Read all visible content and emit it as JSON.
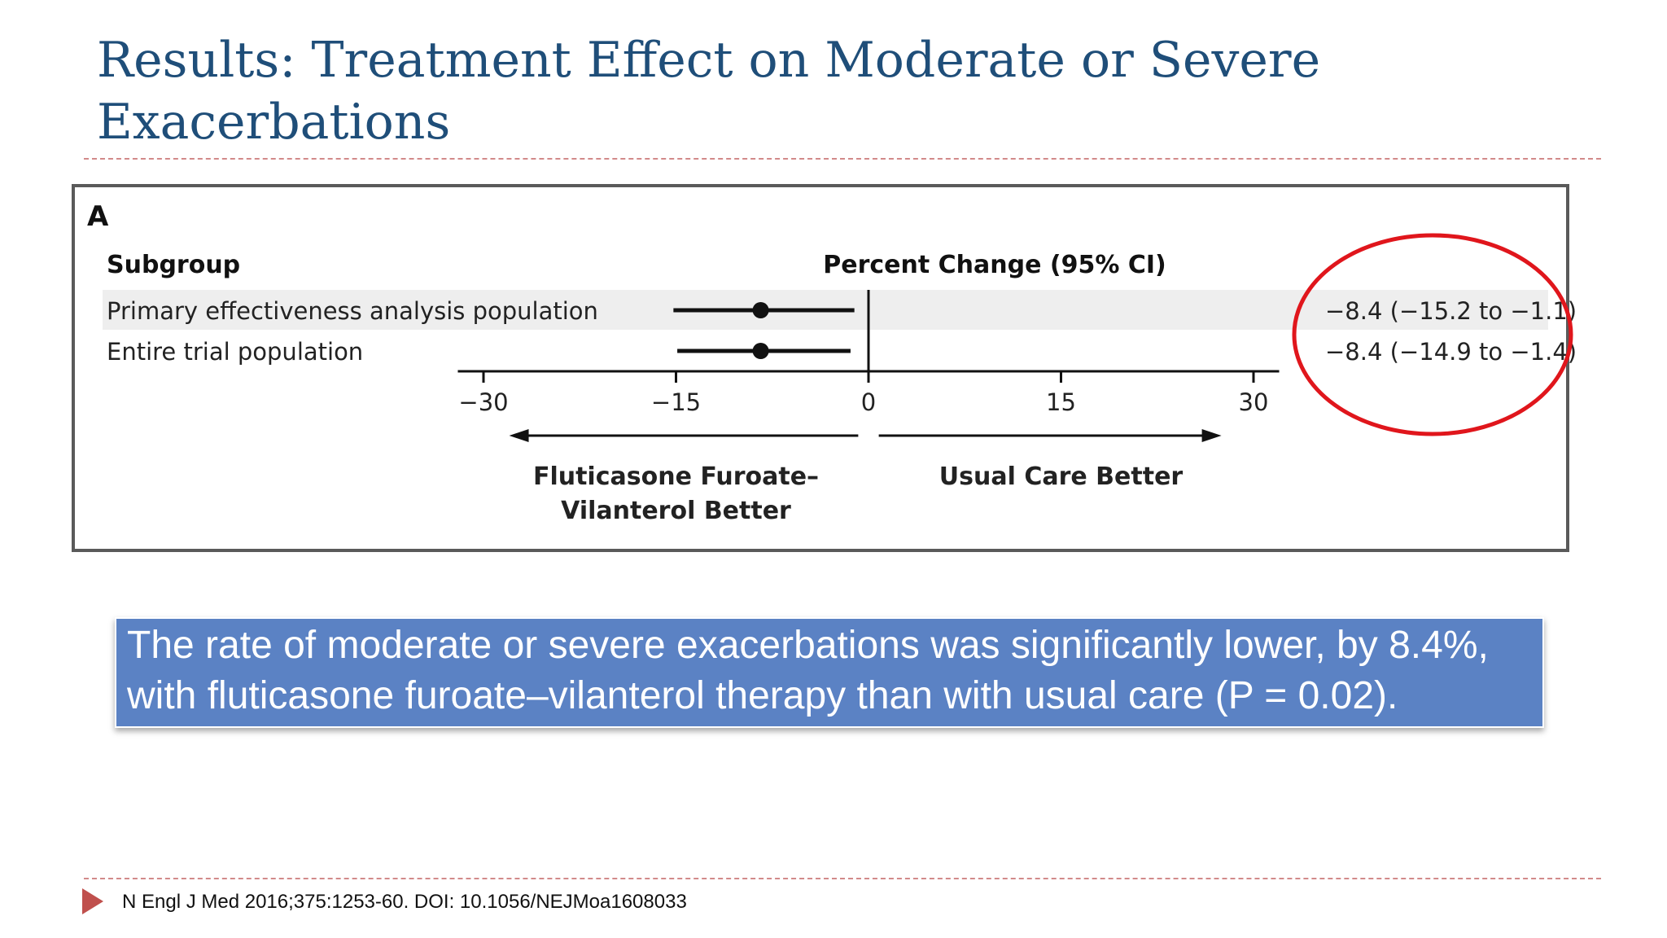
{
  "slide": {
    "title": "Results: Treatment Effect on Moderate or Severe Exacerbations",
    "callout": "The rate of moderate or severe exacerbations was significantly lower, by 8.4%, with fluticasone furoate–vilanterol therapy than with usual care (P = 0.02).",
    "citation": "N Engl J Med 2016;375:1253-60. DOI: 10.1056/NEJMoa1608033"
  },
  "chart_data": {
    "type": "forest",
    "panel_label": "A",
    "subgroup_header": "Subgroup",
    "ci_header": "Percent Change (95% CI)",
    "rows": [
      {
        "label": "Primary effectiveness analysis population",
        "estimate": -8.4,
        "ci_low": -15.2,
        "ci_high": -1.1,
        "ci_text": "−8.4 (−15.2 to −1.1)"
      },
      {
        "label": "Entire trial population",
        "estimate": -8.4,
        "ci_low": -14.9,
        "ci_high": -1.4,
        "ci_text": "−8.4 (−14.9 to −1.4)"
      }
    ],
    "x_ticks": [
      -30,
      -15,
      0,
      15,
      30
    ],
    "x_tick_labels": [
      "−30",
      "−15",
      "0",
      "15",
      "30"
    ],
    "xlim": [
      -32,
      32
    ],
    "left_direction_label": [
      "Fluticasone Furoate–",
      "Vilanterol Better"
    ],
    "right_direction_label": [
      "Usual Care Better"
    ],
    "grid": false,
    "highlight": {
      "target": "ci-column",
      "shape": "ellipse",
      "color": "#e0161c"
    }
  }
}
